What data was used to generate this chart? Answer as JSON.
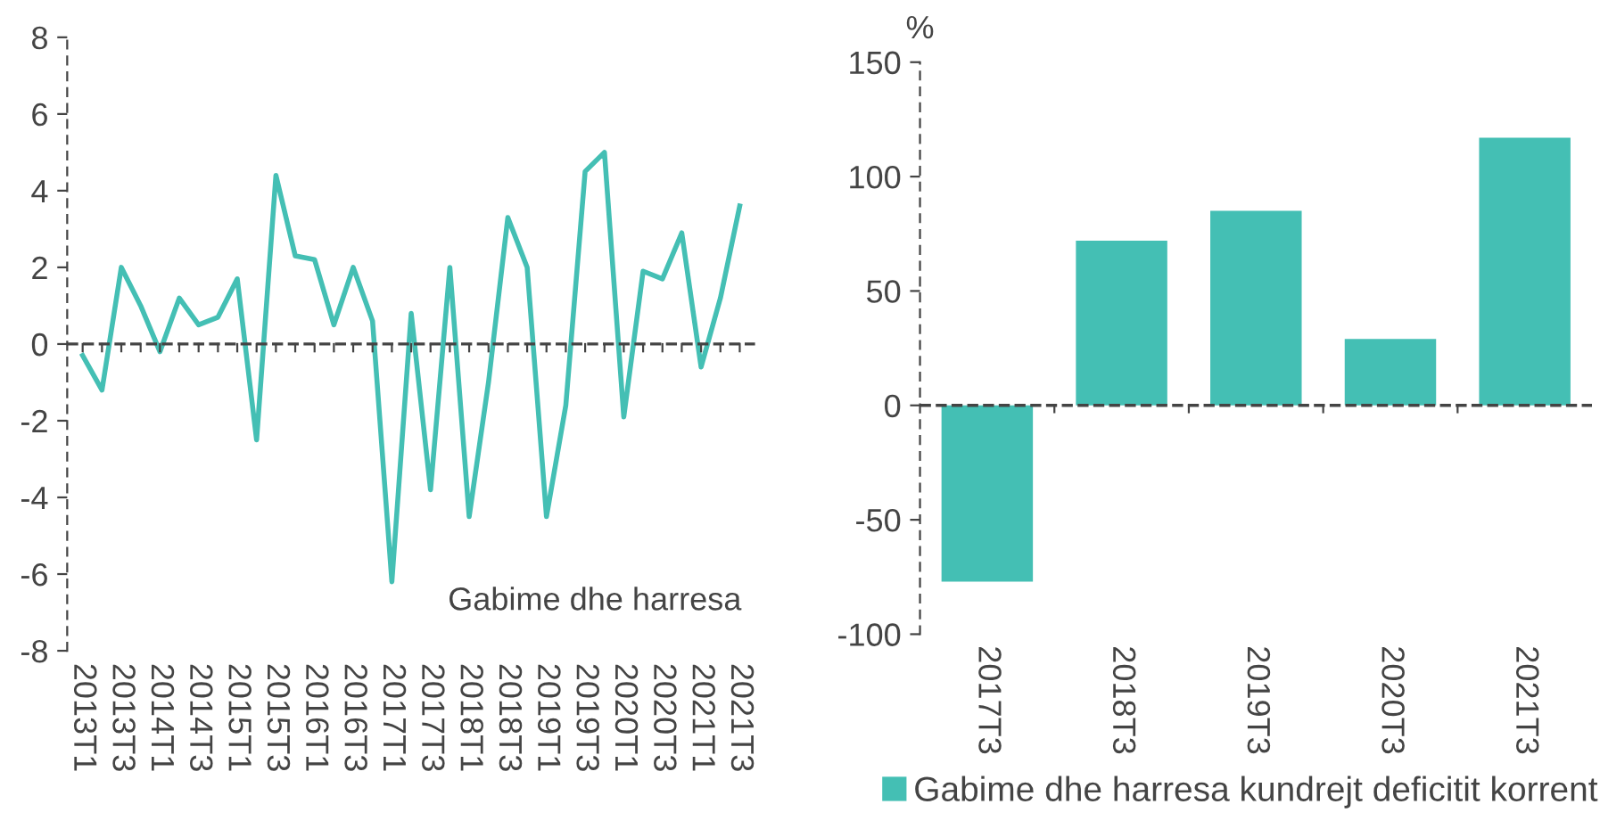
{
  "chart_data": [
    {
      "type": "line",
      "categories": [
        "2013T1",
        null,
        "2013T3",
        null,
        "2014T1",
        null,
        "2014T3",
        null,
        "2015T1",
        null,
        "2015T3",
        null,
        "2016T1",
        null,
        "2016T3",
        null,
        "2017T1",
        null,
        "2017T3",
        null,
        "2018T1",
        null,
        "2018T3",
        null,
        "2019T1",
        null,
        "2019T3",
        null,
        "2020T1",
        null,
        "2020T3",
        null,
        "2021T1",
        null,
        "2021T3"
      ],
      "series": [
        {
          "name": "Gabime dhe harresa",
          "color": "#44bfb4",
          "values": [
            -0.3,
            -1.2,
            2.0,
            1.0,
            -0.2,
            1.2,
            0.5,
            0.7,
            1.7,
            -2.5,
            4.4,
            2.3,
            2.2,
            0.5,
            2.0,
            0.6,
            -6.2,
            0.8,
            -3.8,
            2.0,
            -4.5,
            -1.0,
            3.3,
            2.0,
            -4.5,
            -1.6,
            4.5,
            5.0,
            -1.9,
            1.9,
            1.7,
            2.9,
            -0.6,
            1.2,
            3.6
          ]
        }
      ],
      "ylim": [
        -8,
        8
      ],
      "yticks": [
        -8,
        -6,
        -4,
        -2,
        0,
        2,
        4,
        6,
        8
      ],
      "grid": false,
      "legend": "bottom right",
      "marker": "none",
      "line_style": "solid",
      "ref_lines": [
        {
          "axis": "y",
          "value": 0,
          "line_style": "dashed"
        }
      ]
    },
    {
      "type": "bar",
      "categories": [
        "2017T3",
        "2018T3",
        "2019T3",
        "2020T3",
        "2021T3"
      ],
      "series": [
        {
          "name": "Gabime dhe harresa kundrejt deficitit korrent",
          "color": "#44bfb4",
          "values": [
            -77,
            72,
            85,
            29,
            117
          ]
        }
      ],
      "ylabel": "%",
      "ylim": [
        -100,
        150
      ],
      "yticks": [
        -100,
        -50,
        0,
        50,
        100,
        150
      ],
      "grid": false,
      "legend": "bottom",
      "ref_lines": [
        {
          "axis": "y",
          "value": 0,
          "line_style": "dashed"
        }
      ]
    }
  ]
}
